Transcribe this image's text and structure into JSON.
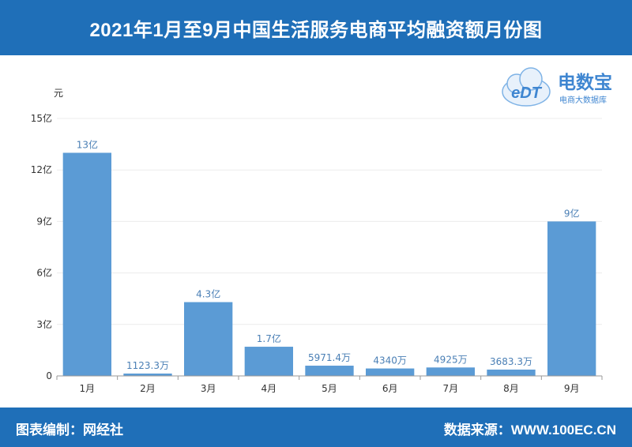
{
  "header": {
    "title": "2021年1月至9月中国生活服务电商平均融资额月份图"
  },
  "footer": {
    "left_text": "图表编制：网经社",
    "right_text": "数据来源：WWW.100EC.CN"
  },
  "logo": {
    "badge": "eDT",
    "name": "电数宝",
    "subtitle": "电商大数据库",
    "color": "#4a90d9"
  },
  "chart_data": {
    "type": "bar",
    "title": "2021年1月至9月中国生活服务电商平均融资额月份图",
    "ylabel": "元",
    "xlabel": "",
    "ylim": [
      0,
      1500000000
    ],
    "yticks": [
      0,
      300000000,
      600000000,
      900000000,
      1200000000,
      1500000000
    ],
    "ytick_labels": [
      "0",
      "3亿",
      "6亿",
      "9亿",
      "12亿",
      "15亿"
    ],
    "categories": [
      "1月",
      "2月",
      "3月",
      "4月",
      "5月",
      "6月",
      "7月",
      "8月",
      "9月"
    ],
    "values": [
      1300000000,
      11233000,
      430000000,
      170000000,
      59714000,
      43400000,
      49250000,
      36833000,
      900000000
    ],
    "data_labels": [
      "13亿",
      "1123.3万",
      "4.3亿",
      "1.7亿",
      "5971.4万",
      "4340万",
      "4925万",
      "3683.3万",
      "9亿"
    ],
    "bar_color": "#5b9bd5",
    "label_color": "#4a7fb5",
    "grid": true,
    "legend": "none"
  }
}
